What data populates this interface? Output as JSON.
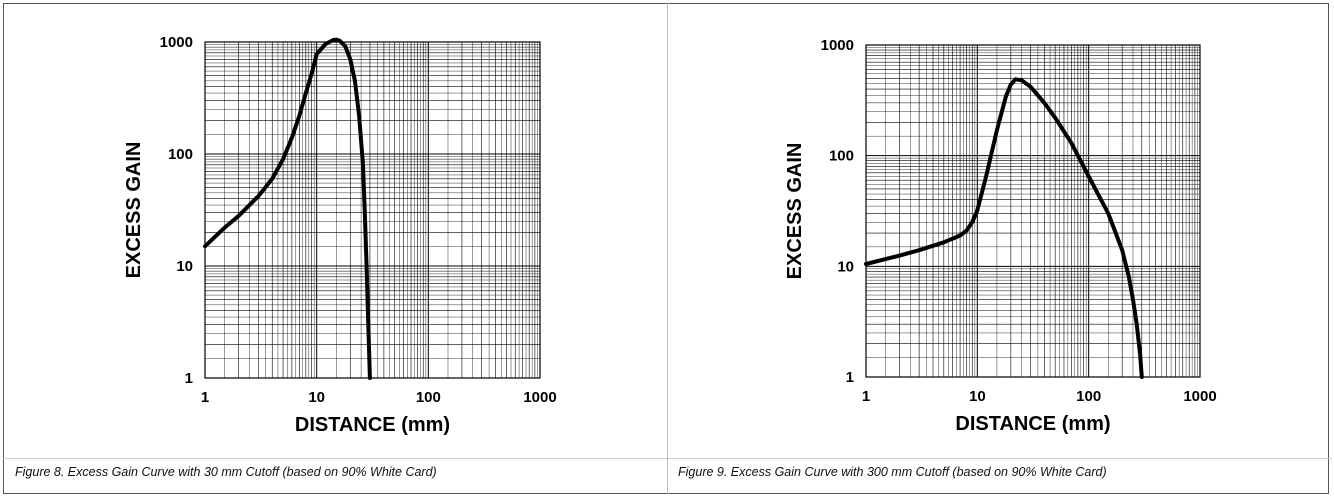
{
  "chart_data": [
    {
      "type": "line",
      "title": "",
      "xlabel": "DISTANCE (mm)",
      "ylabel": "EXCESS GAIN",
      "xscale": "log",
      "yscale": "log",
      "xlim": [
        1,
        1000
      ],
      "ylim": [
        1,
        1000
      ],
      "xticks": [
        "1",
        "10",
        "100",
        "1000"
      ],
      "yticks": [
        "1",
        "10",
        "100",
        "1000"
      ],
      "grid": true,
      "series": [
        {
          "x": [
            1,
            1.5,
            2,
            3,
            4,
            5,
            6,
            7,
            8,
            9,
            10,
            12,
            14,
            15,
            16,
            18,
            20,
            22,
            24,
            26,
            27,
            28,
            29,
            30
          ],
          "y": [
            15,
            22,
            28,
            42,
            60,
            90,
            140,
            220,
            350,
            520,
            780,
            960,
            1040,
            1050,
            1030,
            920,
            700,
            450,
            220,
            80,
            30,
            10,
            3,
            1
          ]
        }
      ],
      "caption": "Figure 8. Excess Gain Curve with 30 mm Cutoff (based on 90% White Card)"
    },
    {
      "type": "line",
      "title": "",
      "xlabel": "DISTANCE (mm)",
      "ylabel": "EXCESS GAIN",
      "xscale": "log",
      "yscale": "log",
      "xlim": [
        1,
        1000
      ],
      "ylim": [
        1,
        1000
      ],
      "xticks": [
        "1",
        "10",
        "100",
        "1000"
      ],
      "yticks": [
        "1",
        "10",
        "100",
        "1000"
      ],
      "grid": true,
      "series": [
        {
          "x": [
            1,
            2,
            3,
            5,
            7,
            8,
            9,
            10,
            12,
            15,
            18,
            20,
            22,
            25,
            30,
            40,
            50,
            70,
            100,
            150,
            200,
            230,
            250,
            270,
            290,
            300
          ],
          "y": [
            10.5,
            12.5,
            14,
            16.5,
            19,
            21,
            25,
            32,
            65,
            170,
            340,
            440,
            490,
            480,
            420,
            300,
            220,
            130,
            65,
            30,
            14,
            8,
            5,
            3,
            1.6,
            1
          ]
        }
      ],
      "caption": "Figure 9. Excess Gain Curve with 300 mm Cutoff (based on 90% White Card)"
    }
  ]
}
